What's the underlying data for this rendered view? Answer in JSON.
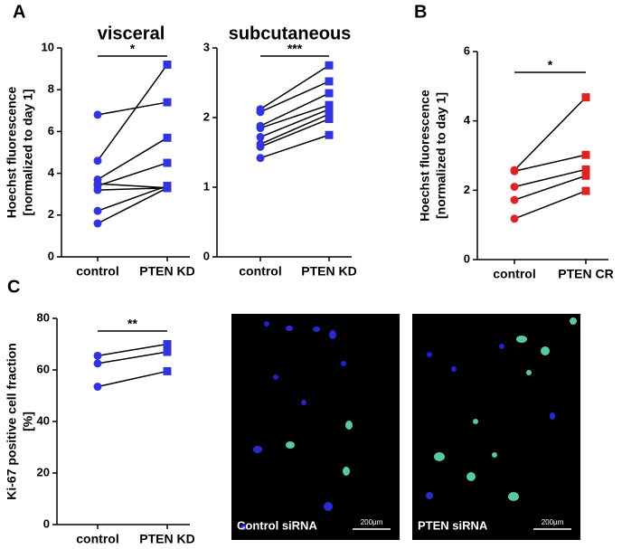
{
  "panels": [
    "A",
    "B",
    "C"
  ],
  "chart_data": [
    {
      "type": "paired",
      "title": "visceral",
      "ylabel": [
        "Hoechst fluorescence",
        "[normalized to day 1]"
      ],
      "categories": [
        "control",
        "PTEN KD"
      ],
      "color": "#3434dc",
      "significance": "*",
      "pairs": [
        [
          6.8,
          7.4
        ],
        [
          4.6,
          9.2
        ],
        [
          3.7,
          5.7
        ],
        [
          3.5,
          3.3
        ],
        [
          3.4,
          4.5
        ],
        [
          3.2,
          3.3
        ],
        [
          2.2,
          3.4
        ],
        [
          1.6,
          3.3
        ]
      ],
      "ylim": [
        0,
        10
      ],
      "yticks": [
        0,
        2,
        4,
        6,
        8,
        10
      ]
    },
    {
      "type": "paired",
      "title": "subcutaneous",
      "categories": [
        "control",
        "PTEN KD"
      ],
      "color": "#3434dc",
      "significance": "***",
      "pairs": [
        [
          2.12,
          2.75
        ],
        [
          2.08,
          2.52
        ],
        [
          1.88,
          2.35
        ],
        [
          1.85,
          2.18
        ],
        [
          1.72,
          2.12
        ],
        [
          1.62,
          2.05
        ],
        [
          1.58,
          1.98
        ],
        [
          1.42,
          1.75
        ]
      ],
      "ylim": [
        0,
        3
      ],
      "yticks": [
        0,
        1,
        2,
        3
      ]
    },
    {
      "type": "paired",
      "ylabel": [
        "Hoechst fluorescence",
        "[normalized to day 1]"
      ],
      "categories": [
        "control",
        "PTEN CR"
      ],
      "color": "#dc2424",
      "significance": "*",
      "pairs": [
        [
          2.58,
          4.68
        ],
        [
          2.55,
          3.02
        ],
        [
          2.1,
          2.6
        ],
        [
          1.72,
          2.42
        ],
        [
          1.18,
          1.98
        ]
      ],
      "ylim": [
        0,
        6
      ],
      "yticks": [
        0,
        2,
        4,
        6
      ]
    },
    {
      "type": "paired",
      "ylabel": [
        "Ki-67 positive cell fraction",
        "[%]"
      ],
      "categories": [
        "control",
        "PTEN KD"
      ],
      "color": "#3434dc",
      "significance": "**",
      "pairs": [
        [
          65.5,
          70
        ],
        [
          62.5,
          67
        ],
        [
          53.5,
          59.5
        ]
      ],
      "ylim": [
        0,
        80
      ],
      "yticks": [
        0,
        20,
        40,
        60,
        80
      ]
    }
  ],
  "images": [
    {
      "label": "Control siRNA",
      "scale": "200µm"
    },
    {
      "label": "PTEN siRNA",
      "scale": "200µm"
    }
  ]
}
